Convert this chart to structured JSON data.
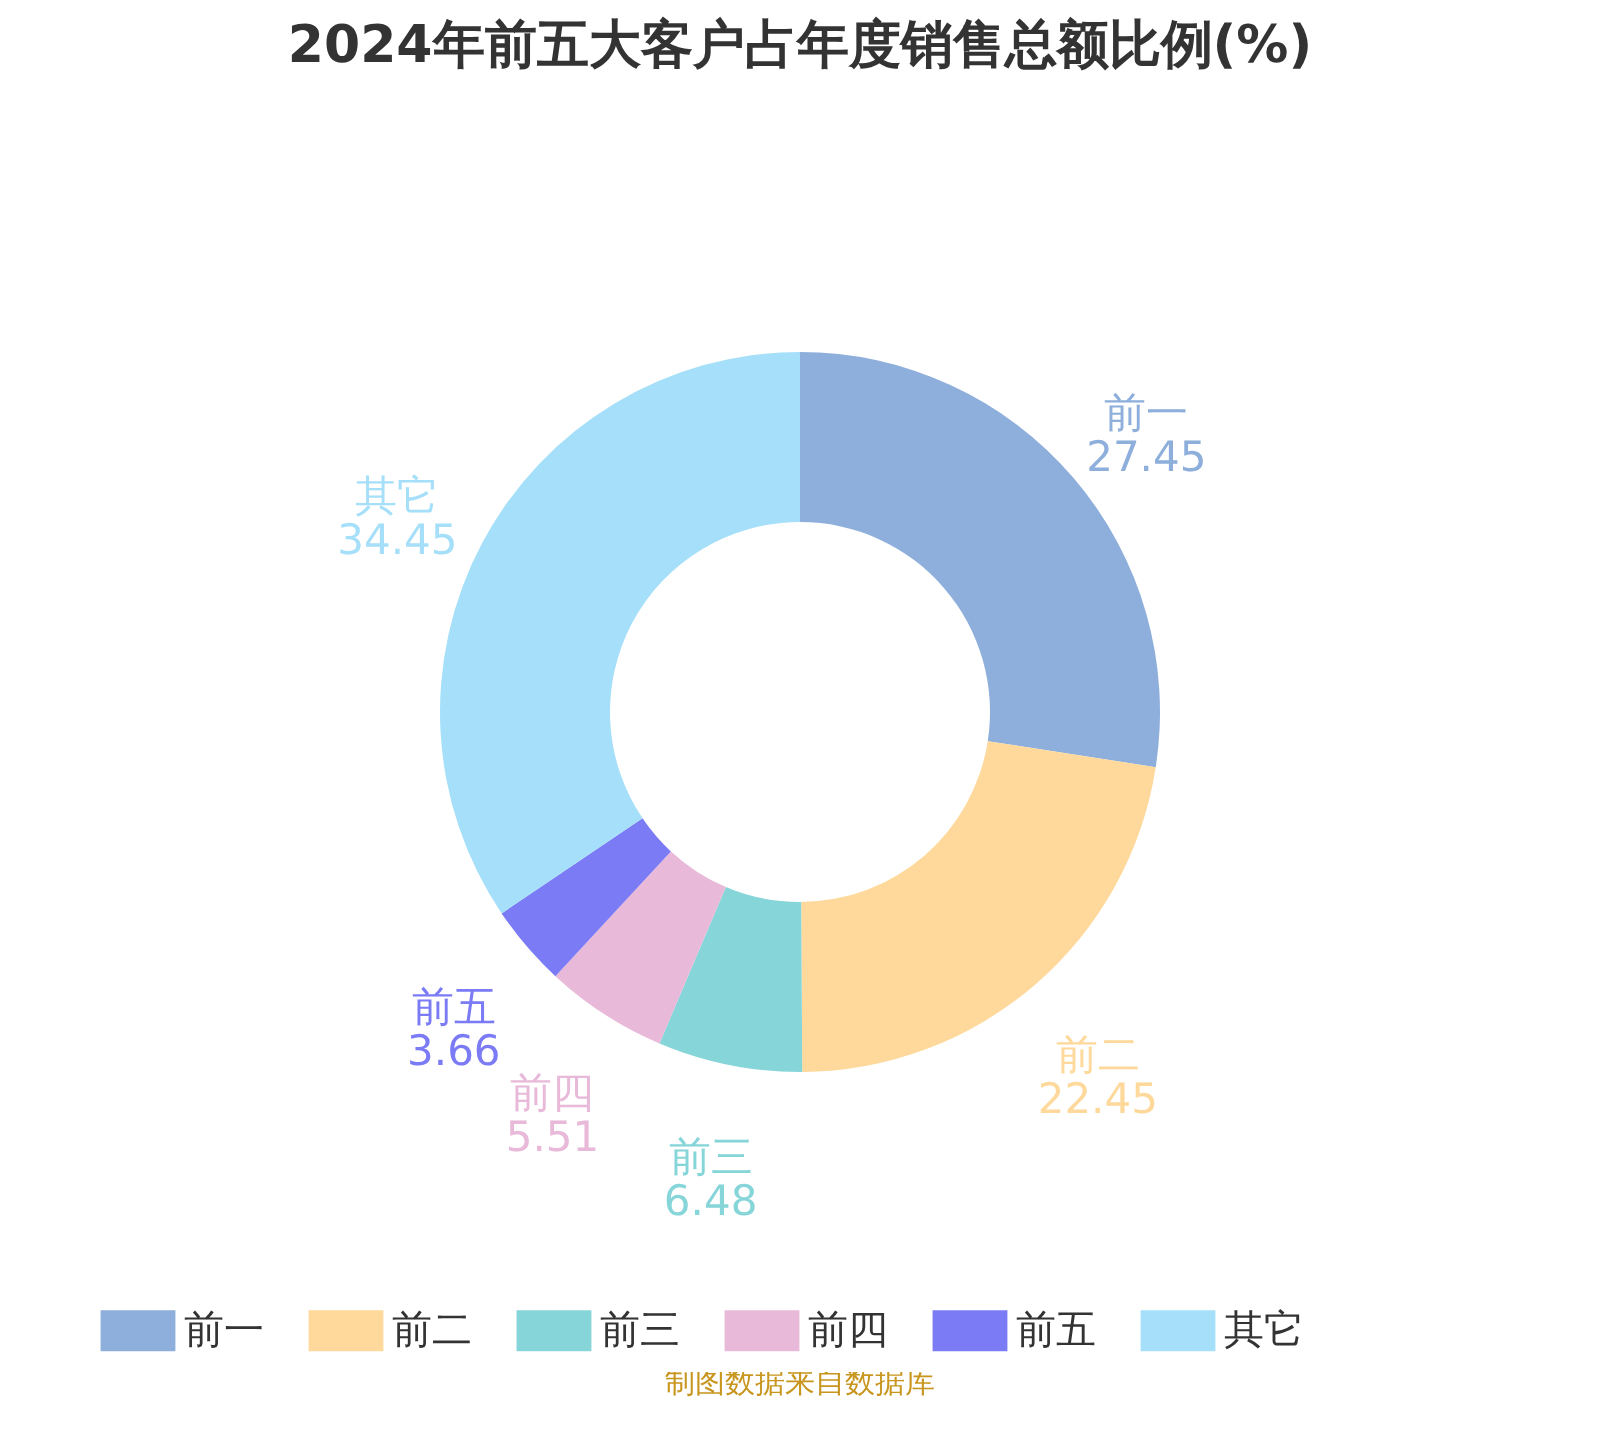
{
  "chart_data": {
    "type": "donut",
    "title": "2024年前五大客户占年度销售总额比例(%)",
    "categories": [
      "前一",
      "前二",
      "前三",
      "前四",
      "前五",
      "其它"
    ],
    "values": [
      27.45,
      22.45,
      6.48,
      5.51,
      3.66,
      34.45
    ],
    "colors": [
      "#8eafdb",
      "#fed99b",
      "#86d5d9",
      "#e8b9d9",
      "#7b7bf5",
      "#a6dff9"
    ],
    "data_labels": true,
    "legend": "bottom",
    "annotations": [
      "制图数据来自数据库"
    ]
  }
}
